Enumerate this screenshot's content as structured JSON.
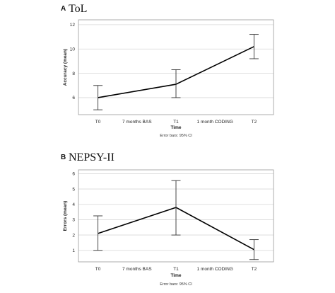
{
  "chart_data": [
    {
      "type": "line",
      "panel_label": "A",
      "title": "ToL",
      "xlabel": "Time",
      "ylabel": "Accuracy (mean)",
      "categories": [
        "T0",
        "7 months BAS",
        "T1",
        "1 month CODING",
        "T2"
      ],
      "y_ticks": [
        6,
        8,
        10,
        12
      ],
      "ylim": [
        4.6,
        12.4
      ],
      "grid": true,
      "series": [
        {
          "points": [
            {
              "x": "T0",
              "y": 6.0,
              "ci_low": 5.0,
              "ci_high": 7.0
            },
            {
              "x": "T1",
              "y": 7.1,
              "ci_low": 6.0,
              "ci_high": 8.3
            },
            {
              "x": "T2",
              "y": 10.2,
              "ci_low": 9.2,
              "ci_high": 11.2
            }
          ]
        }
      ],
      "note": "Error bars: 95% CI"
    },
    {
      "type": "line",
      "panel_label": "B",
      "title": "NEPSY-II",
      "xlabel": "Time",
      "ylabel": "Errors (mean)",
      "categories": [
        "T0",
        "7 months BAS",
        "T1",
        "1 month CODING",
        "T2"
      ],
      "y_ticks": [
        1,
        2,
        3,
        4,
        5,
        6
      ],
      "ylim": [
        0.25,
        6.25
      ],
      "grid": true,
      "series": [
        {
          "points": [
            {
              "x": "T0",
              "y": 2.1,
              "ci_low": 1.0,
              "ci_high": 3.25
            },
            {
              "x": "T1",
              "y": 3.8,
              "ci_low": 2.0,
              "ci_high": 5.55
            },
            {
              "x": "T2",
              "y": 1.05,
              "ci_low": 0.4,
              "ci_high": 1.7
            }
          ]
        }
      ],
      "note": "Error bars: 95% CI"
    }
  ]
}
